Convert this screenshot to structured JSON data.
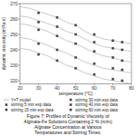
{
  "chart_data": {
    "type": "scatter",
    "title": "Figure 7: Profiles of Dynamic Viscosity of\nAlginate-Fe Solutions Containing 2 % (m/m)\nAlginate Concentration at Various\nTemperatures and Stirring Times.",
    "x_label": "temperature (°C)",
    "y_label": "dynamic viscosity (mPa·s)",
    "xlim": [
      20,
      80
    ],
    "ylim": [
      218,
      270
    ],
    "xticks": [
      20,
      30,
      40,
      50,
      60,
      70,
      80
    ],
    "yticks": [
      220,
      230,
      240,
      250,
      260,
      270
    ],
    "legend": "lower left",
    "series": [
      {
        "name": "Y=T model",
        "type": "line",
        "color": "#bbbbbb",
        "line_style": "solid",
        "x": [
          20,
          25,
          30,
          35,
          40,
          45,
          50,
          55,
          60,
          65,
          70,
          75,
          80
        ],
        "values": [
          268,
          267,
          265,
          263,
          261,
          258,
          256,
          252,
          249,
          247,
          246,
          245,
          244
        ]
      },
      {
        "type": "line",
        "color": "#bbbbbb",
        "line_style": "solid",
        "x": [
          20,
          25,
          30,
          35,
          40,
          45,
          50,
          55,
          60,
          65,
          70,
          75,
          80
        ],
        "values": [
          262,
          261,
          259,
          257,
          255,
          252,
          250,
          247,
          244,
          242,
          241,
          240,
          239
        ]
      },
      {
        "type": "line",
        "color": "#bbbbbb",
        "line_style": "solid",
        "x": [
          20,
          25,
          30,
          35,
          40,
          45,
          50,
          55,
          60,
          65,
          70,
          75,
          80
        ],
        "values": [
          257,
          256,
          254,
          252,
          249,
          246,
          244,
          241,
          238,
          236,
          235,
          233,
          232
        ]
      },
      {
        "type": "line",
        "color": "#bbbbbb",
        "line_style": "solid",
        "x": [
          20,
          25,
          30,
          35,
          40,
          45,
          50,
          55,
          60,
          65,
          70,
          75,
          80
        ],
        "values": [
          248,
          247,
          245,
          243,
          240,
          238,
          235,
          232,
          230,
          228,
          227,
          226,
          225
        ]
      },
      {
        "type": "line",
        "color": "#bbbbbb",
        "line_style": "solid",
        "x": [
          20,
          25,
          30,
          35,
          40,
          45,
          50,
          55,
          60,
          65,
          70,
          75,
          80
        ],
        "values": [
          241,
          240,
          238,
          236,
          233,
          230,
          228,
          225,
          223,
          221,
          220,
          219,
          218
        ]
      },
      {
        "name": "stirring 5 min exp data",
        "type": "scatter",
        "color": "#444444",
        "marker": "square",
        "x": [
          30,
          40,
          50,
          60,
          70,
          75
        ],
        "values": [
          264,
          261,
          256,
          250,
          246,
          245
        ]
      },
      {
        "name": "stirring 15 min exp data",
        "type": "scatter",
        "color": "#444444",
        "marker": "square",
        "x": [
          30,
          40,
          50,
          60,
          70,
          75
        ],
        "values": [
          258,
          255,
          250,
          245,
          241,
          240
        ]
      },
      {
        "name": "stirring 30 min exp data",
        "type": "scatter",
        "color": "#444444",
        "marker": "square",
        "x": [
          30,
          40,
          50,
          60,
          70,
          75
        ],
        "values": [
          253,
          249,
          244,
          239,
          235,
          233
        ]
      },
      {
        "name": "stirring 40 min exp data",
        "type": "scatter",
        "color": "#444444",
        "marker": "square",
        "x": [
          30,
          40,
          50,
          60,
          70,
          75
        ],
        "values": [
          244,
          240,
          235,
          231,
          228,
          227
        ]
      },
      {
        "name": "stirring 60 min exp data",
        "type": "scatter",
        "color": "#444444",
        "marker": "square",
        "x": [
          30,
          40,
          50,
          60,
          70,
          75
        ],
        "values": [
          237,
          233,
          228,
          224,
          221,
          220
        ]
      }
    ]
  }
}
